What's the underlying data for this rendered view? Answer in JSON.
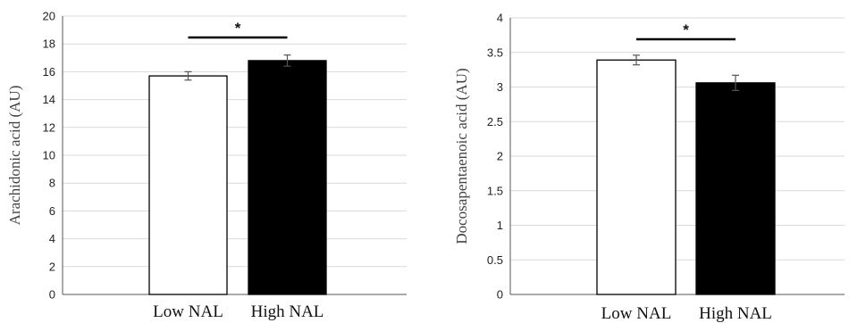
{
  "chart_data": [
    {
      "type": "bar",
      "categories": [
        "Low NAL",
        "High NAL"
      ],
      "values": [
        15.7,
        16.8
      ],
      "errors": [
        0.3,
        0.4
      ],
      "bar_colors": [
        "#ffffff",
        "#000000"
      ],
      "ylabel": "Arachidonic acid (AU)",
      "ylim": [
        0,
        20
      ],
      "yticks": [
        "0",
        "2",
        "4",
        "6",
        "8",
        "10",
        "12",
        "14",
        "16",
        "18",
        "20"
      ],
      "grid": true,
      "significance": "*"
    },
    {
      "type": "bar",
      "categories": [
        "Low NAL",
        "High NAL"
      ],
      "values": [
        3.39,
        3.06
      ],
      "errors": [
        0.07,
        0.11
      ],
      "bar_colors": [
        "#ffffff",
        "#000000"
      ],
      "ylabel": "Docosapentaenoic acid (AU)",
      "ylim": [
        0,
        4
      ],
      "yticks": [
        "0",
        "0.5",
        "1",
        "1.5",
        "2",
        "2.5",
        "3",
        "3.5",
        "4"
      ],
      "grid": true,
      "significance": "*"
    }
  ]
}
